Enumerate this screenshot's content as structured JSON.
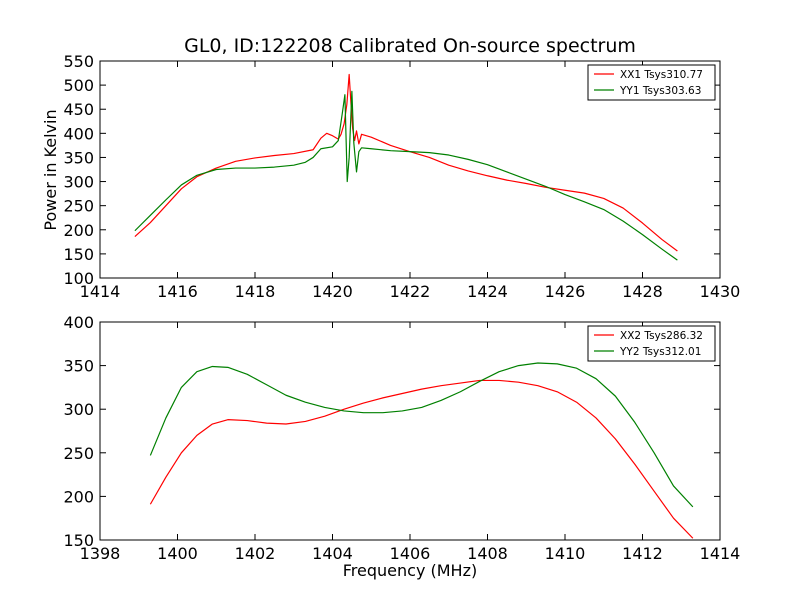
{
  "chart_data": [
    {
      "type": "line",
      "title": "GL0, ID:122208 Calibrated On-source spectrum",
      "xlabel": "",
      "ylabel": "Power in Kelvin",
      "xlim": [
        1414,
        1430
      ],
      "ylim": [
        100,
        550
      ],
      "xticks": [
        1414,
        1416,
        1418,
        1420,
        1422,
        1424,
        1426,
        1428,
        1430
      ],
      "yticks": [
        100,
        150,
        200,
        250,
        300,
        350,
        400,
        450,
        500,
        550
      ],
      "legend_position": "top-right",
      "grid": false,
      "series": [
        {
          "name": "XX1 Tsys310.77",
          "color": "#ff0000",
          "points": [
            [
              1414.9,
              186
            ],
            [
              1415.3,
              215
            ],
            [
              1415.7,
              250
            ],
            [
              1416.1,
              285
            ],
            [
              1416.5,
              310
            ],
            [
              1417.0,
              328
            ],
            [
              1417.5,
              342
            ],
            [
              1418.0,
              349
            ],
            [
              1418.5,
              354
            ],
            [
              1419.0,
              358
            ],
            [
              1419.5,
              366
            ],
            [
              1419.7,
              390
            ],
            [
              1419.85,
              400
            ],
            [
              1420.0,
              395
            ],
            [
              1420.15,
              388
            ],
            [
              1420.22,
              398
            ],
            [
              1420.3,
              420
            ],
            [
              1420.37,
              460
            ],
            [
              1420.43,
              522
            ],
            [
              1420.47,
              470
            ],
            [
              1420.52,
              410
            ],
            [
              1420.57,
              385
            ],
            [
              1420.62,
              405
            ],
            [
              1420.68,
              378
            ],
            [
              1420.75,
              398
            ],
            [
              1421.0,
              392
            ],
            [
              1421.5,
              375
            ],
            [
              1422.0,
              362
            ],
            [
              1422.5,
              350
            ],
            [
              1423.0,
              334
            ],
            [
              1423.5,
              322
            ],
            [
              1424.0,
              312
            ],
            [
              1424.5,
              303
            ],
            [
              1425.0,
              296
            ],
            [
              1425.5,
              288
            ],
            [
              1426.0,
              282
            ],
            [
              1426.5,
              276
            ],
            [
              1427.0,
              265
            ],
            [
              1427.5,
              245
            ],
            [
              1428.0,
              214
            ],
            [
              1428.5,
              180
            ],
            [
              1428.9,
              156
            ]
          ]
        },
        {
          "name": "YY1 Tsys303.63",
          "color": "#008000",
          "points": [
            [
              1414.9,
              198
            ],
            [
              1415.3,
              230
            ],
            [
              1415.7,
              262
            ],
            [
              1416.1,
              293
            ],
            [
              1416.5,
              313
            ],
            [
              1417.0,
              325
            ],
            [
              1417.5,
              328
            ],
            [
              1418.0,
              328
            ],
            [
              1418.5,
              330
            ],
            [
              1419.0,
              334
            ],
            [
              1419.3,
              340
            ],
            [
              1419.5,
              350
            ],
            [
              1419.7,
              368
            ],
            [
              1420.0,
              372
            ],
            [
              1420.15,
              385
            ],
            [
              1420.25,
              440
            ],
            [
              1420.32,
              480
            ],
            [
              1420.38,
              300
            ],
            [
              1420.43,
              350
            ],
            [
              1420.5,
              487
            ],
            [
              1420.55,
              380
            ],
            [
              1420.62,
              320
            ],
            [
              1420.68,
              362
            ],
            [
              1420.75,
              370
            ],
            [
              1421.0,
              368
            ],
            [
              1421.5,
              364
            ],
            [
              1422.0,
              362
            ],
            [
              1422.5,
              360
            ],
            [
              1423.0,
              355
            ],
            [
              1423.5,
              346
            ],
            [
              1424.0,
              335
            ],
            [
              1424.5,
              320
            ],
            [
              1425.0,
              305
            ],
            [
              1425.5,
              290
            ],
            [
              1426.0,
              273
            ],
            [
              1426.5,
              258
            ],
            [
              1427.0,
              242
            ],
            [
              1427.5,
              218
            ],
            [
              1428.0,
              190
            ],
            [
              1428.5,
              160
            ],
            [
              1428.9,
              137
            ]
          ]
        }
      ]
    },
    {
      "type": "line",
      "title": "",
      "xlabel": "Frequency (MHz)",
      "ylabel": "",
      "xlim": [
        1398,
        1414
      ],
      "ylim": [
        150,
        400
      ],
      "xticks": [
        1398,
        1400,
        1402,
        1404,
        1406,
        1408,
        1410,
        1412,
        1414
      ],
      "yticks": [
        150,
        200,
        250,
        300,
        350,
        400
      ],
      "legend_position": "top-right",
      "grid": false,
      "series": [
        {
          "name": "XX2 Tsys286.32",
          "color": "#ff0000",
          "points": [
            [
              1399.3,
              191
            ],
            [
              1399.7,
              222
            ],
            [
              1400.1,
              250
            ],
            [
              1400.5,
              270
            ],
            [
              1400.9,
              283
            ],
            [
              1401.3,
              288
            ],
            [
              1401.8,
              287
            ],
            [
              1402.3,
              284
            ],
            [
              1402.8,
              283
            ],
            [
              1403.3,
              286
            ],
            [
              1403.8,
              292
            ],
            [
              1404.3,
              300
            ],
            [
              1404.8,
              307
            ],
            [
              1405.3,
              313
            ],
            [
              1405.8,
              318
            ],
            [
              1406.3,
              323
            ],
            [
              1406.8,
              327
            ],
            [
              1407.3,
              330
            ],
            [
              1407.8,
              333
            ],
            [
              1408.3,
              333
            ],
            [
              1408.8,
              331
            ],
            [
              1409.3,
              327
            ],
            [
              1409.8,
              320
            ],
            [
              1410.3,
              308
            ],
            [
              1410.8,
              290
            ],
            [
              1411.3,
              266
            ],
            [
              1411.8,
              237
            ],
            [
              1412.3,
              206
            ],
            [
              1412.8,
              175
            ],
            [
              1413.3,
              152
            ]
          ]
        },
        {
          "name": "YY2 Tsys312.01",
          "color": "#008000",
          "points": [
            [
              1399.3,
              247
            ],
            [
              1399.7,
              290
            ],
            [
              1400.1,
              325
            ],
            [
              1400.5,
              343
            ],
            [
              1400.9,
              349
            ],
            [
              1401.3,
              348
            ],
            [
              1401.8,
              340
            ],
            [
              1402.3,
              328
            ],
            [
              1402.8,
              316
            ],
            [
              1403.3,
              308
            ],
            [
              1403.8,
              302
            ],
            [
              1404.3,
              298
            ],
            [
              1404.8,
              296
            ],
            [
              1405.3,
              296
            ],
            [
              1405.8,
              298
            ],
            [
              1406.3,
              302
            ],
            [
              1406.8,
              310
            ],
            [
              1407.3,
              320
            ],
            [
              1407.8,
              332
            ],
            [
              1408.3,
              343
            ],
            [
              1408.8,
              350
            ],
            [
              1409.3,
              353
            ],
            [
              1409.8,
              352
            ],
            [
              1410.3,
              347
            ],
            [
              1410.8,
              335
            ],
            [
              1411.3,
              315
            ],
            [
              1411.8,
              285
            ],
            [
              1412.3,
              250
            ],
            [
              1412.8,
              212
            ],
            [
              1413.3,
              188
            ]
          ]
        }
      ]
    }
  ]
}
